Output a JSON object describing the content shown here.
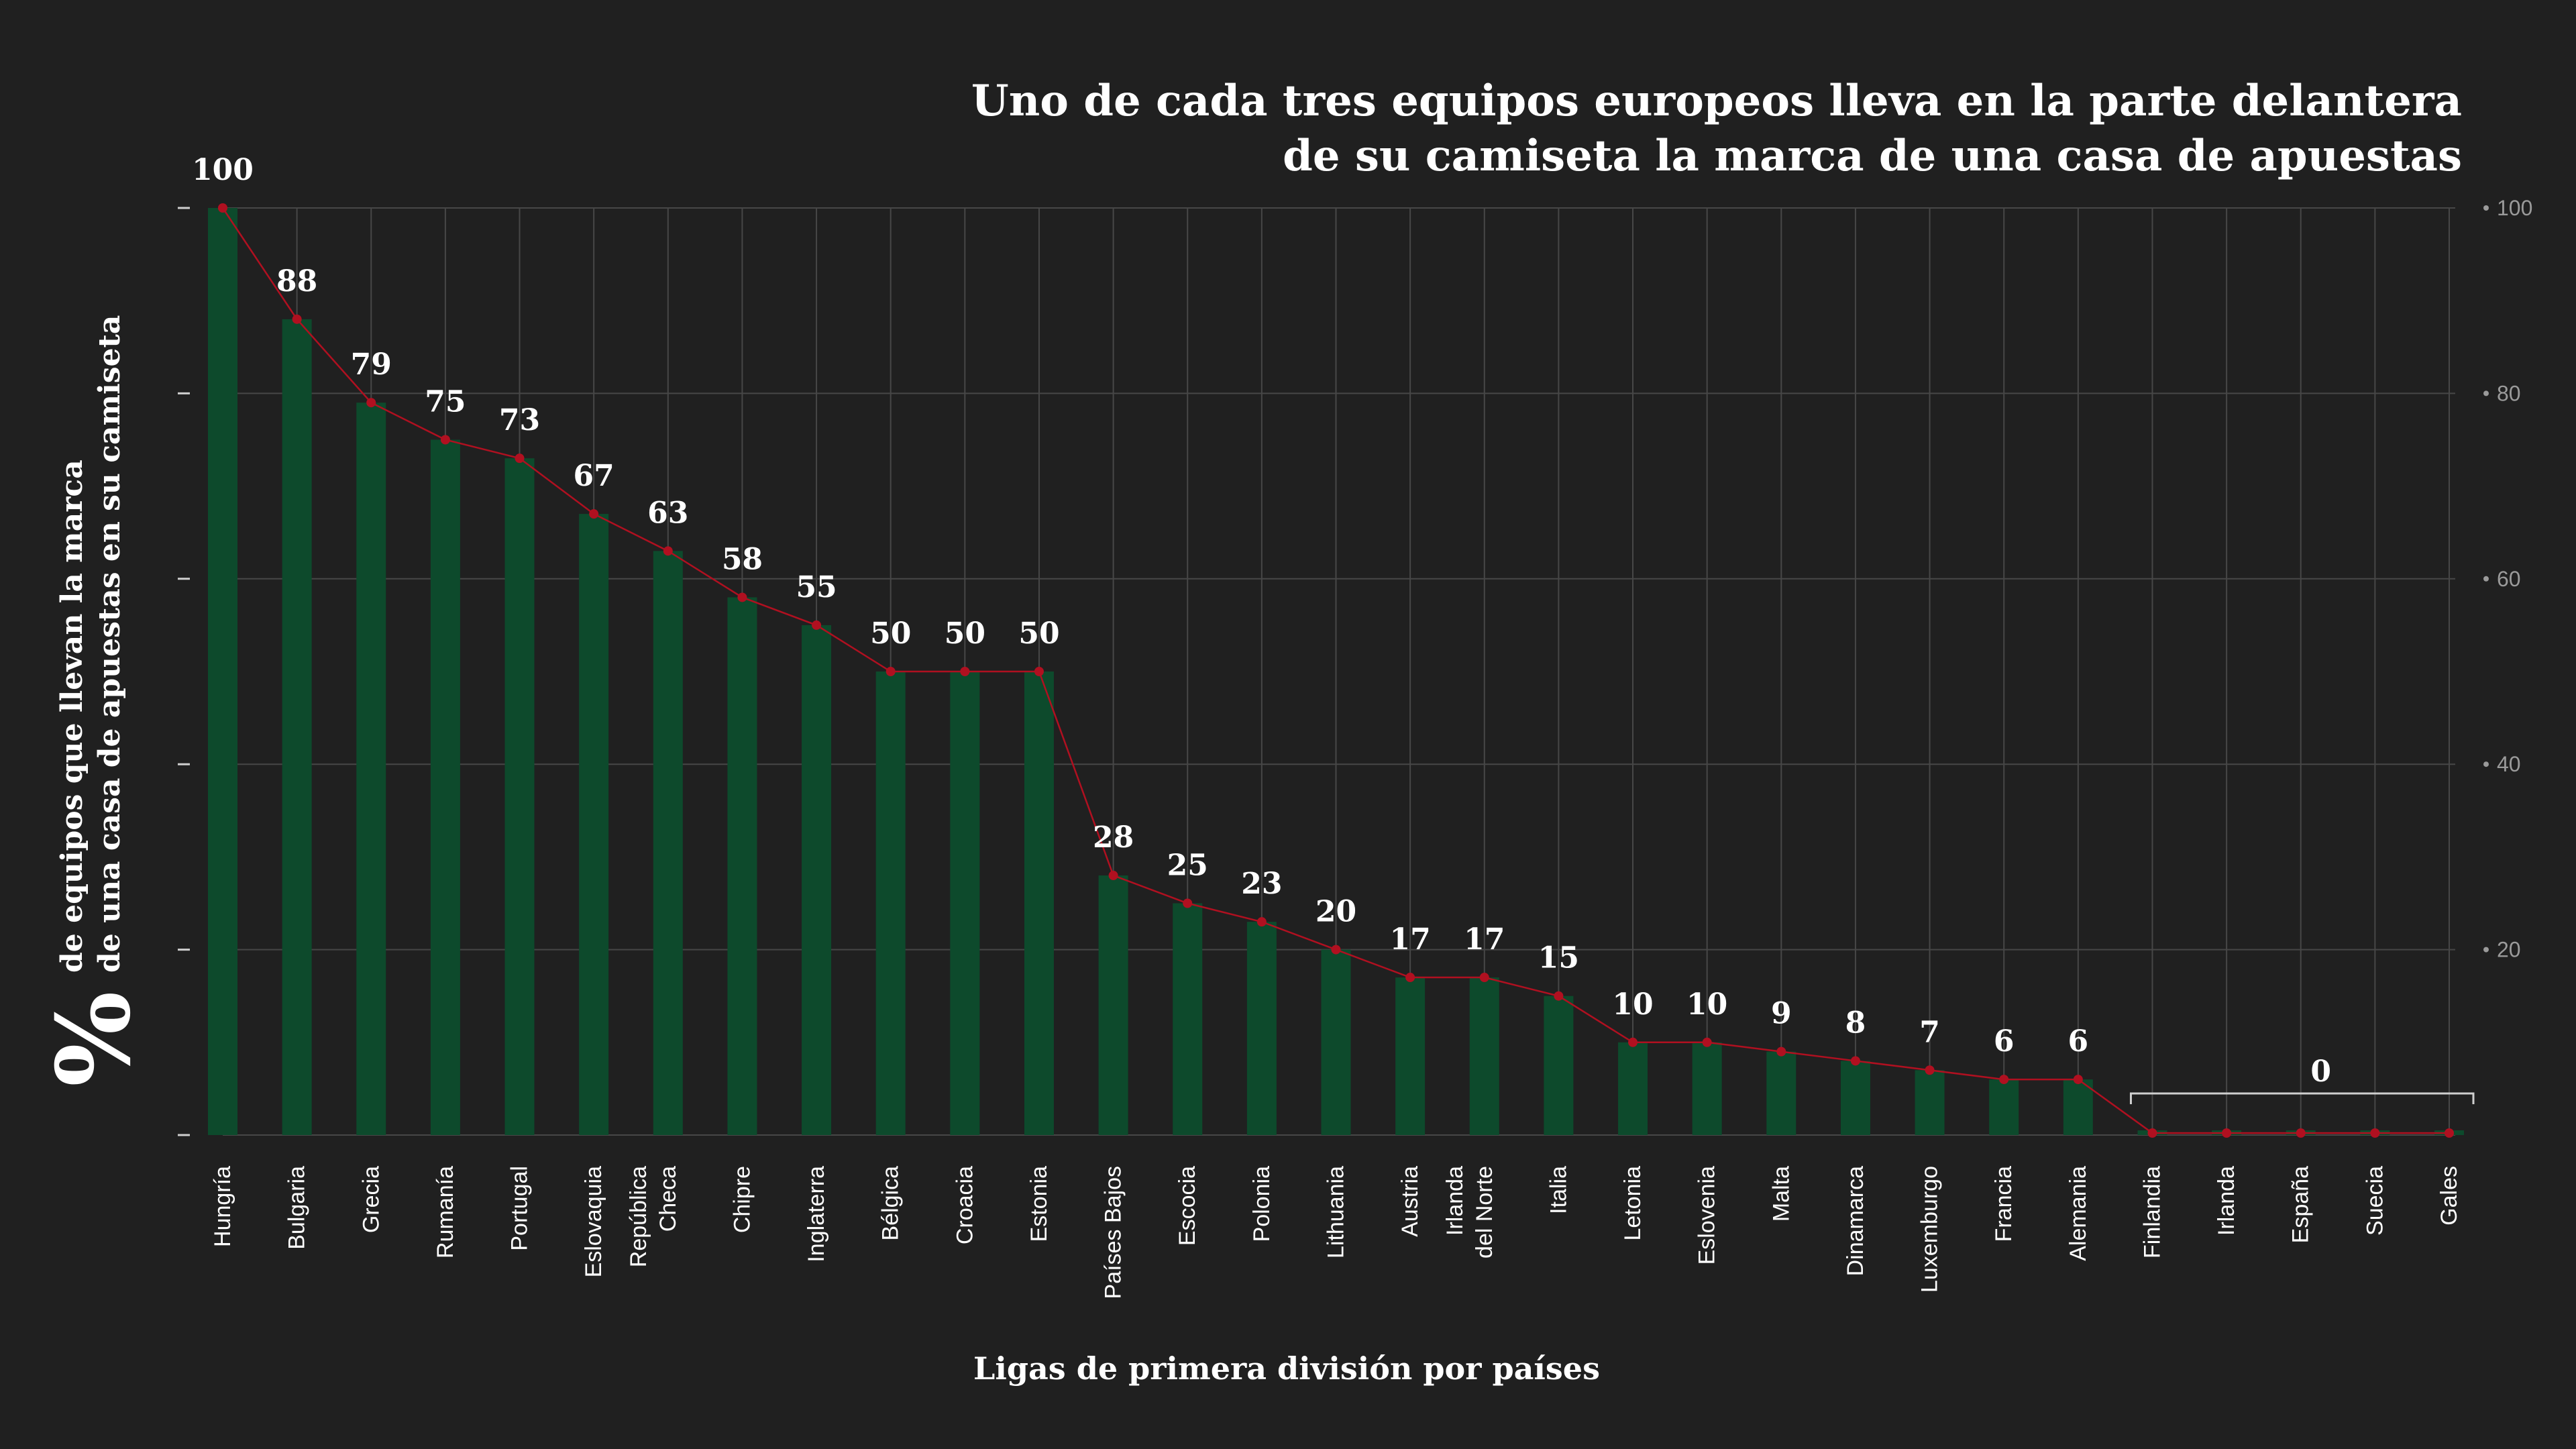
{
  "chart_data": {
    "type": "bar",
    "title_lines": [
      "Uno de cada tres equipos europeos lleva en la parte delantera",
      "de su camiseta la marca de una casa de apuestas"
    ],
    "ylabel_symbol": "%",
    "ylabel_lines": [
      "de equipos que llevan la marca",
      "de una casa de apuestas en su camiseta"
    ],
    "xlabel": "Ligas de primera división por países",
    "categories": [
      [
        "Hungría"
      ],
      [
        "Bulgaria"
      ],
      [
        "Grecia"
      ],
      [
        "Rumanía"
      ],
      [
        "Portugal"
      ],
      [
        "Eslovaquia"
      ],
      [
        "República",
        "Checa"
      ],
      [
        "Chipre"
      ],
      [
        "Inglaterra"
      ],
      [
        "Bélgica"
      ],
      [
        "Croacia"
      ],
      [
        "Estonia"
      ],
      [
        "Países Bajos"
      ],
      [
        "Escocia"
      ],
      [
        "Polonia"
      ],
      [
        "Lithuania"
      ],
      [
        "Austria"
      ],
      [
        "Irlanda",
        "del Norte"
      ],
      [
        "Italia"
      ],
      [
        "Letonia"
      ],
      [
        "Eslovenia"
      ],
      [
        "Malta"
      ],
      [
        "Dinamarca"
      ],
      [
        "Luxemburgo"
      ],
      [
        "Francia"
      ],
      [
        "Alemania"
      ],
      [
        "Finlandia"
      ],
      [
        "Irlanda"
      ],
      [
        "España"
      ],
      [
        "Suecia"
      ],
      [
        "Gales"
      ]
    ],
    "values": [
      100,
      88,
      79,
      75,
      73,
      67,
      63,
      58,
      55,
      50,
      50,
      50,
      28,
      25,
      23,
      20,
      17,
      17,
      15,
      10,
      10,
      9,
      8,
      7,
      6,
      6,
      0,
      0,
      0,
      0,
      0
    ],
    "labeled_count": 26,
    "zero_group_label": "0",
    "ylim": [
      0,
      100
    ],
    "right_ticks": [
      20,
      40,
      60,
      80,
      100
    ],
    "grid": true,
    "bar_color": "#0d4a2c",
    "line_color": "#b01020",
    "grid_color": "#474747"
  }
}
